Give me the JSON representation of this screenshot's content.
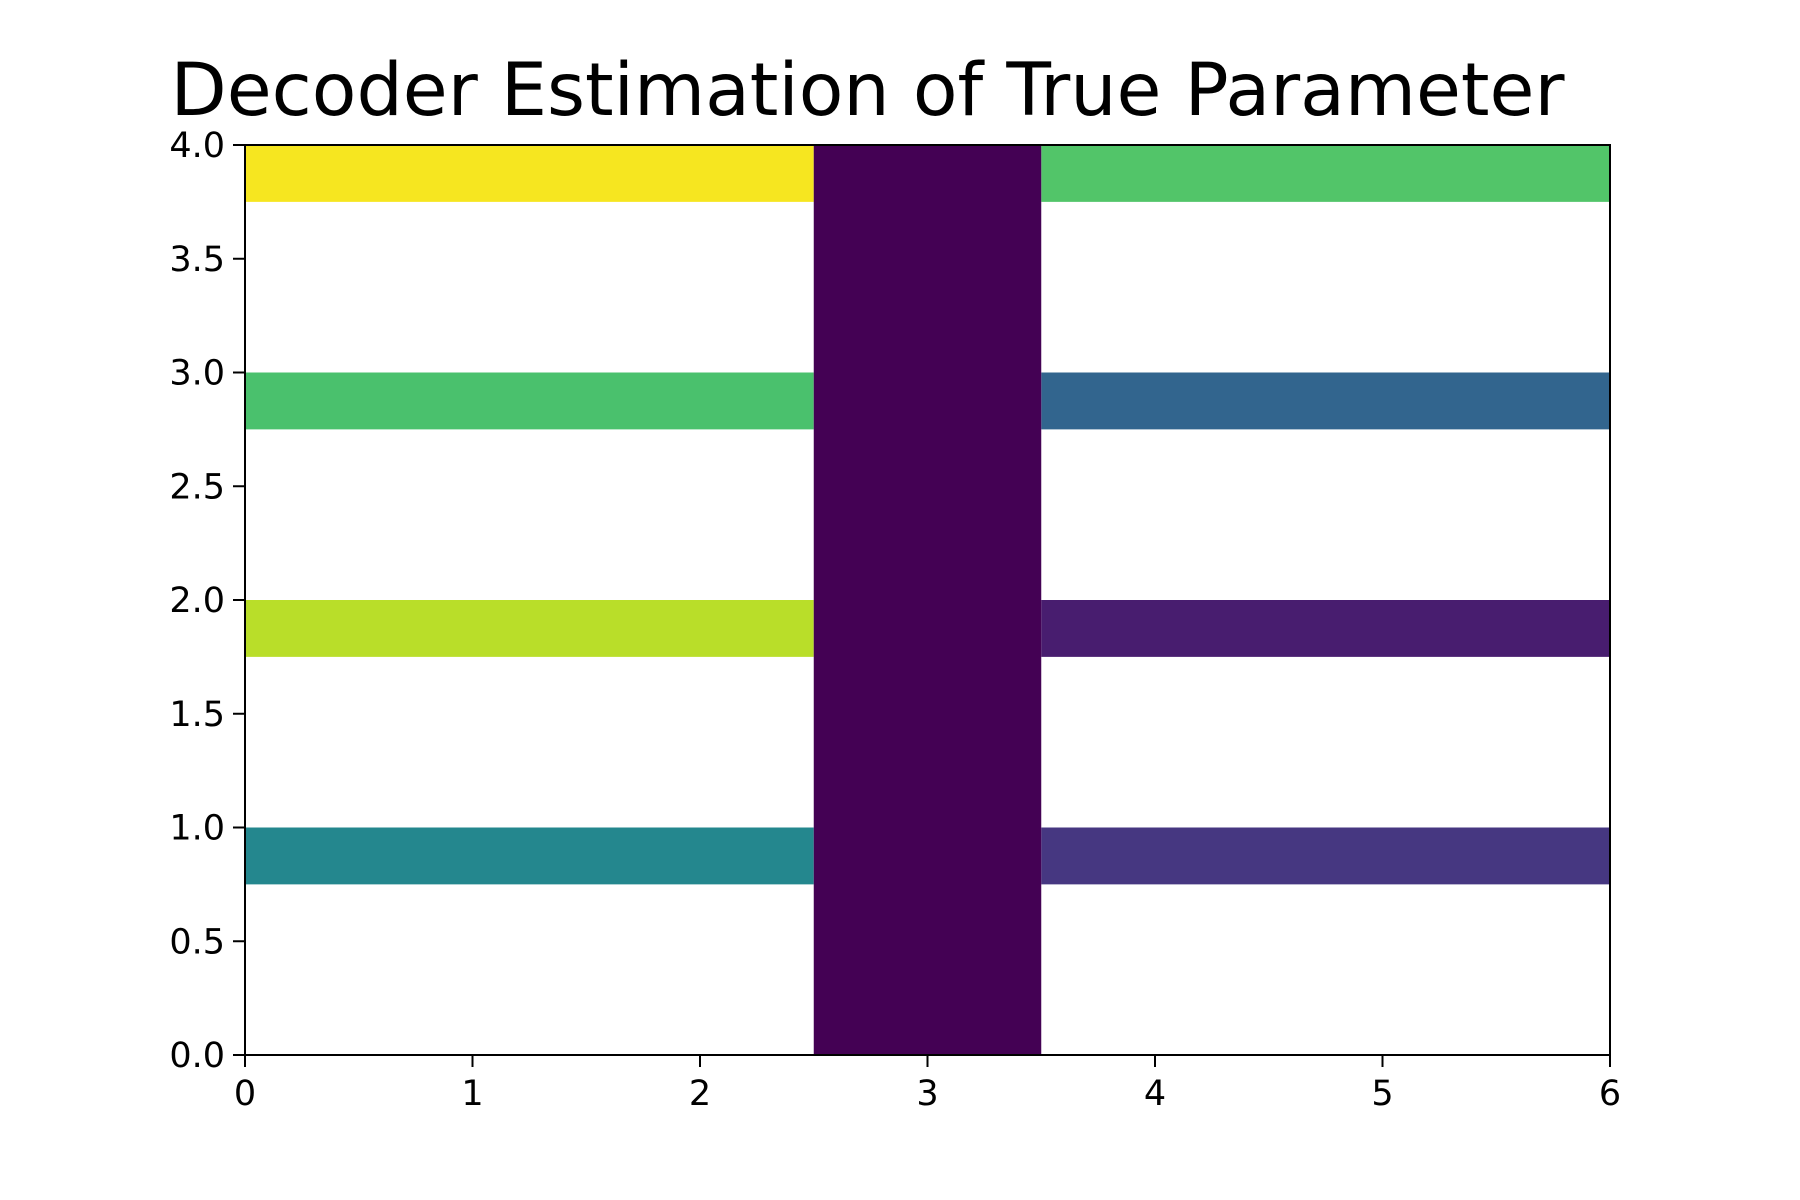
{
  "chart_data": {
    "type": "heatmap",
    "title": "Decoder Estimation of True Parameter",
    "xlabel": "",
    "ylabel": "",
    "xlim": [
      0,
      6
    ],
    "ylim": [
      0,
      4
    ],
    "xticks": [
      "0",
      "1",
      "2",
      "3",
      "4",
      "5",
      "6"
    ],
    "yticks": [
      "0.0",
      "0.5",
      "1.0",
      "1.5",
      "2.0",
      "2.5",
      "3.0",
      "3.5",
      "4.0"
    ],
    "colormap": "viridis",
    "rows": [
      {
        "y": [
          0.75,
          1.0
        ],
        "segments": [
          {
            "x": [
              0,
              2.5
            ],
            "color": "#24878e"
          },
          {
            "x": [
              3.5,
              6
            ],
            "color": "#463781"
          }
        ]
      },
      {
        "y": [
          1.75,
          2.0
        ],
        "segments": [
          {
            "x": [
              0,
              2.5
            ],
            "color": "#b9de29"
          },
          {
            "x": [
              3.5,
              6
            ],
            "color": "#481d6f"
          }
        ]
      },
      {
        "y": [
          2.75,
          3.0
        ],
        "segments": [
          {
            "x": [
              0,
              2.5
            ],
            "color": "#4ac16d"
          },
          {
            "x": [
              3.5,
              6
            ],
            "color": "#32658e"
          }
        ]
      },
      {
        "y": [
          3.75,
          4.0
        ],
        "segments": [
          {
            "x": [
              0,
              2.5
            ],
            "color": "#f6e620"
          },
          {
            "x": [
              3.5,
              6
            ],
            "color": "#52c569"
          }
        ]
      }
    ],
    "band": {
      "x": [
        2.5,
        3.5
      ],
      "y": [
        0,
        4
      ],
      "color": "#440154"
    },
    "grid": false,
    "legend": "none"
  }
}
